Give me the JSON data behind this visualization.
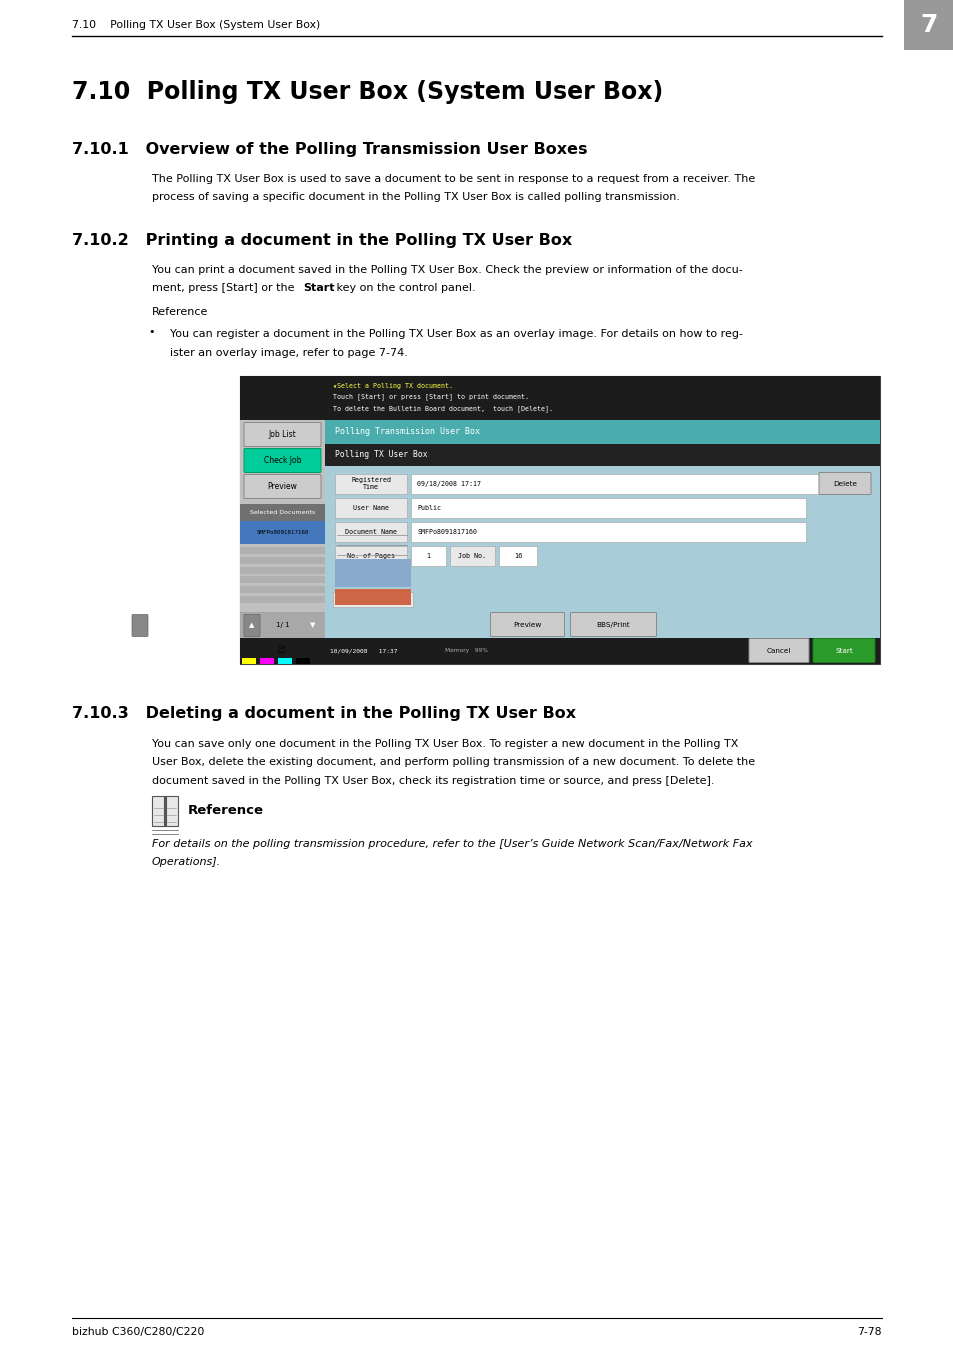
{
  "page_width": 9.54,
  "page_height": 13.5,
  "bg_color": "#ffffff",
  "header_section_num": "7.10",
  "header_section_title": "Polling TX User Box (System User Box)",
  "header_page_num": "7",
  "footer_left": "bizhub C360/C280/C220",
  "footer_right": "7-78",
  "main_title_num": "7.10",
  "main_title": "Polling TX User Box (System User Box)",
  "section1_num": "7.10.1",
  "section1_title": "Overview of the Polling Transmission User Boxes",
  "section1_body_line1": "The Polling TX User Box is used to save a document to be sent in response to a request from a receiver. The",
  "section1_body_line2": "process of saving a specific document in the Polling TX User Box is called polling transmission.",
  "section2_num": "7.10.2",
  "section2_title": "Printing a document in the Polling TX User Box",
  "section2_body_line1": "You can print a document saved in the Polling TX User Box. Check the preview or information of the docu-",
  "section2_body_line2a": "ment, press [Start] or the ",
  "section2_body_line2b": "Start",
  "section2_body_line2c": " key on the control panel.",
  "section2_ref_label": "Reference",
  "section2_bullet_line1": "You can register a document in the Polling TX User Box as an overlay image. For details on how to reg-",
  "section2_bullet_line2": "ister an overlay image, refer to page 7-74.",
  "section3_num": "7.10.3",
  "section3_title": "Deleting a document in the Polling TX User Box",
  "section3_body_line1": "You can save only one document in the Polling TX User Box. To register a new document in the Polling TX",
  "section3_body_line2": "User Box, delete the existing document, and perform polling transmission of a new document. To delete the",
  "section3_body_line3": "document saved in the Polling TX User Box, check its registration time or source, and press [Delete].",
  "section3_ref_label": "Reference",
  "section3_ref_line1": "For details on the polling transmission procedure, refer to the [User’s Guide Network Scan/Fax/Network Fax",
  "section3_ref_line2": "Operations].",
  "lm": 0.72,
  "tl": 1.52,
  "body_fs": 8.0,
  "section_fs": 11.5,
  "title_fs": 17.0,
  "header_fs": 7.8,
  "colors": {
    "teal": "#4aacac",
    "dark_teal": "#2a8a8a",
    "black_bar": "#1c1c1c",
    "btn_gray": "#d4d4d4",
    "btn_green": "#00c896",
    "panel_gray": "#c0c0c0",
    "table_bg": "#b8dce8",
    "white_cell": "#ffffff",
    "label_cell": "#e8e8e8",
    "dark_btn": "#888888",
    "start_green": "#2a9a2a"
  }
}
